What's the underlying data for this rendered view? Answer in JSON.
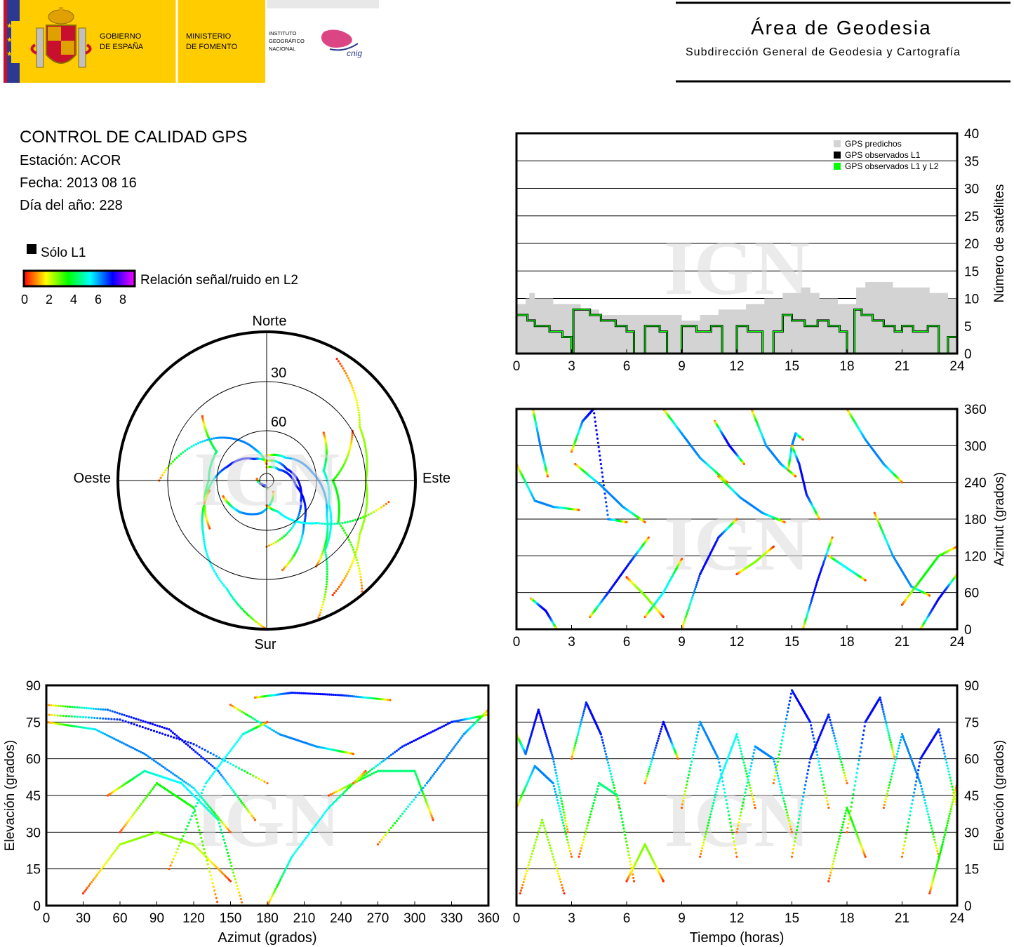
{
  "header": {
    "gov_line1": "GOBIERNO",
    "gov_line2": "DE ESPAÑA",
    "ministry_line1": "MINISTERIO",
    "ministry_line2": "DE FOMENTO",
    "ign_line1": "INSTITUTO",
    "ign_line2": "GEOGRÁFICO",
    "ign_line3": "NACIONAL",
    "cnig_logo_text": "cnig",
    "area_title": "Área de Geodesia",
    "area_subtitle": "Subdirección General de Geodesia y Cartografía"
  },
  "info": {
    "title": "CONTROL DE CALIDAD GPS",
    "station": "Estación: ACOR",
    "date": "Fecha: 2013 08 16",
    "doy": "Día del año: 228"
  },
  "legend": {
    "l1_only": "Sólo L1",
    "snr_label": "Relación señal/ruido en L2",
    "snr_ticks": [
      "0",
      "2",
      "4",
      "6",
      "8"
    ],
    "snr_colors": [
      "#ff0000",
      "#ffff00",
      "#00ff00",
      "#00ffff",
      "#0000ff",
      "#ff00ff"
    ]
  },
  "watermark": "IGN",
  "skyplot": {
    "north": "Norte",
    "south": "Sur",
    "east": "Este",
    "west": "Oeste",
    "ring_labels": [
      "30",
      "60"
    ]
  },
  "chart_data": [
    {
      "type": "area",
      "x_ticks": [
        "0",
        "3",
        "6",
        "9",
        "12",
        "15",
        "18",
        "21",
        "24"
      ],
      "y_ticks": [
        "0",
        "5",
        "10",
        "15",
        "20",
        "25",
        "30",
        "35",
        "40"
      ],
      "ylabel": "Número de satélites",
      "ylim": [
        0,
        40
      ],
      "xlim": [
        0,
        24
      ],
      "legend_placement": "top-right",
      "series": [
        {
          "name": "GPS predichos",
          "color": "#d3d3d3",
          "x": [
            0,
            0.5,
            0.7,
            1.0,
            1.5,
            2.0,
            2.5,
            3.0,
            3.5,
            4.0,
            4.5,
            5.0,
            5.5,
            6.0,
            6.5,
            7.0,
            7.5,
            8.0,
            8.5,
            9.0,
            9.5,
            10.0,
            10.5,
            11.0,
            11.5,
            12.0,
            12.5,
            13.0,
            13.5,
            14.0,
            14.5,
            15.0,
            15.5,
            16.0,
            16.5,
            17.0,
            17.5,
            18.0,
            18.5,
            19.0,
            19.5,
            20.0,
            20.5,
            21.0,
            21.5,
            22.0,
            22.5,
            23.0,
            23.5,
            24
          ],
          "y": [
            9,
            10,
            11,
            10,
            10,
            9,
            9,
            9,
            8,
            8,
            7,
            7,
            7,
            7,
            7,
            7,
            7,
            7,
            7,
            6,
            6,
            7,
            7,
            8,
            8,
            8,
            9,
            9,
            10,
            10,
            11,
            11,
            12,
            11,
            10,
            10,
            9,
            9,
            12,
            13,
            13,
            13,
            12,
            12,
            12,
            12,
            11,
            11,
            10,
            10
          ]
        },
        {
          "name": "GPS observados L1",
          "color": "#000000",
          "x": [
            0,
            0.6,
            1.0,
            1.8,
            2.5,
            3.0,
            3.1,
            4.0,
            4.6,
            5.4,
            6.0,
            6.4,
            7.0,
            7.8,
            8.2,
            9.0,
            9.8,
            10.6,
            11.2,
            12.0,
            12.6,
            13.4,
            14.0,
            14.5,
            15.0,
            15.7,
            16.4,
            17.0,
            17.6,
            18.0,
            18.4,
            18.8,
            19.4,
            20.0,
            20.6,
            21.0,
            21.6,
            22.4,
            23.0,
            23.5,
            24
          ],
          "y": [
            7,
            6,
            5,
            4,
            3,
            0,
            8,
            7,
            6,
            5,
            4,
            0,
            5,
            4,
            0,
            5,
            4,
            5,
            0,
            5,
            4,
            0,
            4,
            7,
            6,
            5,
            6,
            5,
            4,
            0,
            8,
            7,
            6,
            5,
            4,
            5,
            4,
            5,
            0,
            3,
            6
          ]
        },
        {
          "name": "GPS observados L1 y L2",
          "color": "#00ff00",
          "x": [
            0,
            0.6,
            1.0,
            1.8,
            2.5,
            3.0,
            3.1,
            4.0,
            4.6,
            5.4,
            6.0,
            6.4,
            7.0,
            7.8,
            8.2,
            9.0,
            9.8,
            10.6,
            11.2,
            12.0,
            12.6,
            13.4,
            14.0,
            14.5,
            15.0,
            15.7,
            16.4,
            17.0,
            17.6,
            18.0,
            18.4,
            18.8,
            19.4,
            20.0,
            20.6,
            21.0,
            21.6,
            22.4,
            23.0,
            23.5,
            24
          ],
          "y": [
            7,
            6,
            5,
            4,
            3,
            0,
            8,
            7,
            6,
            5,
            4,
            0,
            5,
            4,
            0,
            5,
            4,
            5,
            0,
            5,
            4,
            0,
            4,
            7,
            6,
            5,
            6,
            5,
            4,
            0,
            8,
            7,
            6,
            5,
            4,
            5,
            4,
            5,
            0,
            3,
            6
          ]
        }
      ]
    },
    {
      "type": "scatter",
      "x_ticks": [
        "0",
        "3",
        "6",
        "9",
        "12",
        "15",
        "18",
        "21",
        "24"
      ],
      "y_ticks": [
        "0",
        "60",
        "120",
        "180",
        "240",
        "300",
        "360"
      ],
      "ylabel": "Azimut (grados)",
      "xlim": [
        0,
        24
      ],
      "ylim": [
        0,
        360
      ],
      "tracks": [
        {
          "x": [
            0,
            1.0,
            2.0,
            3.4
          ],
          "y": [
            270,
            210,
            200,
            195
          ],
          "snr": 7
        },
        {
          "x": [
            0.8,
            1.6,
            2.2
          ],
          "y": [
            50,
            30,
            0
          ],
          "snr": 8
        },
        {
          "x": [
            0.9,
            1.3,
            1.7
          ],
          "y": [
            360,
            300,
            250
          ],
          "snr": 7
        },
        {
          "x": [
            3.0,
            3.6,
            4.2,
            5.0,
            6.0
          ],
          "y": [
            290,
            340,
            360,
            180,
            175
          ],
          "snr": 8
        },
        {
          "x": [
            3.2,
            4.6,
            5.8,
            7.0
          ],
          "y": [
            270,
            235,
            200,
            175
          ],
          "snr": 7
        },
        {
          "x": [
            4.0,
            5.0,
            6.2,
            7.2
          ],
          "y": [
            20,
            60,
            110,
            150
          ],
          "snr": 8
        },
        {
          "x": [
            6.0,
            7.0,
            8.0
          ],
          "y": [
            85,
            55,
            20
          ],
          "snr": 3
        },
        {
          "x": [
            7.0,
            8.0,
            9.0
          ],
          "y": [
            20,
            60,
            115
          ],
          "snr": 6
        },
        {
          "x": [
            8.0,
            9.0,
            10.0,
            11.5
          ],
          "y": [
            360,
            320,
            280,
            240
          ],
          "snr": 7
        },
        {
          "x": [
            9.0,
            10.0,
            11.0,
            12.0
          ],
          "y": [
            0,
            90,
            150,
            180
          ],
          "snr": 8
        },
        {
          "x": [
            10.8,
            11.6,
            12.4
          ],
          "y": [
            340,
            300,
            270
          ],
          "snr": 8
        },
        {
          "x": [
            11.0,
            12.2,
            13.4,
            14.6
          ],
          "y": [
            250,
            215,
            190,
            175
          ],
          "snr": 7
        },
        {
          "x": [
            12.0,
            13.0,
            14.0
          ],
          "y": [
            90,
            110,
            135
          ],
          "snr": 3
        },
        {
          "x": [
            12.8,
            13.6,
            14.4,
            15.2
          ],
          "y": [
            360,
            300,
            270,
            250
          ],
          "snr": 7
        },
        {
          "x": [
            14.8,
            15.0,
            15.2,
            15.6
          ],
          "y": [
            260,
            300,
            320,
            310
          ],
          "snr": 7
        },
        {
          "x": [
            15.0,
            15.4,
            15.8,
            16.5
          ],
          "y": [
            300,
            270,
            220,
            180
          ],
          "snr": 8
        },
        {
          "x": [
            15.6,
            16.4,
            17.2
          ],
          "y": [
            0,
            80,
            150
          ],
          "snr": 8
        },
        {
          "x": [
            17.0,
            18.0,
            19.0
          ],
          "y": [
            120,
            100,
            80
          ],
          "snr": 6
        },
        {
          "x": [
            18.0,
            19.0,
            20.0,
            21.0
          ],
          "y": [
            360,
            310,
            270,
            240
          ],
          "snr": 7
        },
        {
          "x": [
            19.5,
            20.5,
            21.5,
            22.5
          ],
          "y": [
            190,
            120,
            70,
            55
          ],
          "snr": 7
        },
        {
          "x": [
            21.0,
            22.0,
            23.0,
            24.0
          ],
          "y": [
            40,
            80,
            120,
            135
          ],
          "snr": 4
        },
        {
          "x": [
            22.0,
            23.0,
            24.0
          ],
          "y": [
            0,
            50,
            90
          ],
          "snr": 8
        }
      ]
    },
    {
      "type": "scatter",
      "x_ticks": [
        "0",
        "30",
        "60",
        "90",
        "120",
        "150",
        "180",
        "210",
        "240",
        "270",
        "300",
        "330",
        "360"
      ],
      "y_ticks": [
        "0",
        "15",
        "30",
        "45",
        "60",
        "75",
        "90"
      ],
      "xlabel": "Azimut (grados)",
      "ylabel": "Elevación (grados)",
      "xlim": [
        0,
        360
      ],
      "ylim": [
        0,
        90
      ],
      "tracks": [
        {
          "x": [
            0,
            60,
            120,
            180
          ],
          "y": [
            78,
            76,
            66,
            50
          ],
          "snr": 8
        },
        {
          "x": [
            0,
            50,
            100,
            140,
            170
          ],
          "y": [
            82,
            80,
            72,
            55,
            35
          ],
          "snr": 8
        },
        {
          "x": [
            0,
            40,
            80,
            120,
            150
          ],
          "y": [
            75,
            72,
            62,
            48,
            30
          ],
          "snr": 7
        },
        {
          "x": [
            30,
            60,
            90,
            120,
            150
          ],
          "y": [
            5,
            25,
            30,
            25,
            10
          ],
          "snr": 3
        },
        {
          "x": [
            50,
            80,
            110,
            140,
            160
          ],
          "y": [
            45,
            55,
            50,
            35,
            0
          ],
          "snr": 6
        },
        {
          "x": [
            60,
            90,
            120,
            140
          ],
          "y": [
            30,
            50,
            40,
            0
          ],
          "snr": 4
        },
        {
          "x": [
            170,
            200,
            240,
            280
          ],
          "y": [
            85,
            87,
            86,
            84
          ],
          "snr": 8
        },
        {
          "x": [
            150,
            190,
            220,
            250
          ],
          "y": [
            82,
            70,
            65,
            62
          ],
          "snr": 7
        },
        {
          "x": [
            180,
            200,
            230,
            260
          ],
          "y": [
            0,
            20,
            40,
            55
          ],
          "snr": 6
        },
        {
          "x": [
            230,
            270,
            300,
            315
          ],
          "y": [
            45,
            55,
            55,
            35
          ],
          "snr": 5
        },
        {
          "x": [
            250,
            290,
            330,
            360
          ],
          "y": [
            50,
            65,
            75,
            78
          ],
          "snr": 8
        },
        {
          "x": [
            270,
            310,
            340,
            360
          ],
          "y": [
            25,
            50,
            70,
            80
          ],
          "snr": 7
        },
        {
          "x": [
            100,
            130,
            160,
            180
          ],
          "y": [
            15,
            50,
            70,
            75
          ],
          "snr": 6
        }
      ]
    },
    {
      "type": "scatter",
      "x_ticks": [
        "0",
        "3",
        "6",
        "9",
        "12",
        "15",
        "18",
        "21",
        "24"
      ],
      "y_ticks": [
        "0",
        "15",
        "30",
        "45",
        "60",
        "75",
        "90"
      ],
      "xlabel": "Tiempo (horas)",
      "ylabel": "Elevación (grados)",
      "xlim": [
        0,
        24
      ],
      "ylim": [
        0,
        90
      ],
      "tracks": [
        {
          "x": [
            0,
            0.5,
            1.2,
            2.0,
            2.8
          ],
          "y": [
            70,
            62,
            80,
            60,
            30
          ],
          "snr": 8
        },
        {
          "x": [
            0,
            1.0,
            2.0,
            3.0
          ],
          "y": [
            40,
            57,
            50,
            20
          ],
          "snr": 7
        },
        {
          "x": [
            0.2,
            1.4,
            2.6
          ],
          "y": [
            5,
            35,
            5
          ],
          "snr": 3
        },
        {
          "x": [
            3.0,
            3.8,
            4.6,
            5.6
          ],
          "y": [
            60,
            83,
            70,
            40
          ],
          "snr": 8
        },
        {
          "x": [
            3.4,
            4.5,
            5.5,
            6.4
          ],
          "y": [
            20,
            50,
            45,
            10
          ],
          "snr": 5
        },
        {
          "x": [
            6.0,
            7.0,
            8.0
          ],
          "y": [
            10,
            25,
            10
          ],
          "snr": 3
        },
        {
          "x": [
            7.0,
            8.0,
            8.8
          ],
          "y": [
            50,
            75,
            60
          ],
          "snr": 8
        },
        {
          "x": [
            9.0,
            10.0,
            11.0,
            12.0
          ],
          "y": [
            40,
            75,
            60,
            20
          ],
          "snr": 7
        },
        {
          "x": [
            10.0,
            11.0,
            12.0,
            13.0
          ],
          "y": [
            20,
            50,
            70,
            40
          ],
          "snr": 6
        },
        {
          "x": [
            12.0,
            13.0,
            14.0,
            15.0
          ],
          "y": [
            30,
            65,
            60,
            30
          ],
          "snr": 7
        },
        {
          "x": [
            14.0,
            15.0,
            16.0,
            17.0
          ],
          "y": [
            50,
            88,
            75,
            40
          ],
          "snr": 8
        },
        {
          "x": [
            15.0,
            16.0,
            17.0,
            18.0
          ],
          "y": [
            20,
            60,
            78,
            50
          ],
          "snr": 8
        },
        {
          "x": [
            17.0,
            18.0,
            19.0
          ],
          "y": [
            10,
            40,
            20
          ],
          "snr": 4
        },
        {
          "x": [
            18.0,
            19.0,
            19.8,
            20.6
          ],
          "y": [
            30,
            75,
            85,
            60
          ],
          "snr": 8
        },
        {
          "x": [
            20.0,
            21.0,
            22.0,
            23.0
          ],
          "y": [
            40,
            70,
            50,
            20
          ],
          "snr": 7
        },
        {
          "x": [
            21.0,
            22.0,
            23.0,
            24.0
          ],
          "y": [
            20,
            60,
            72,
            40
          ],
          "snr": 8
        },
        {
          "x": [
            22.5,
            23.2,
            24.0
          ],
          "y": [
            5,
            25,
            50
          ],
          "snr": 4
        }
      ]
    }
  ]
}
